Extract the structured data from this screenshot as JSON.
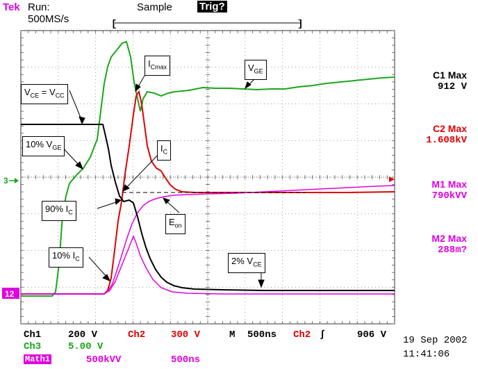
{
  "header": {
    "brand": "Tek",
    "run_status": "Run: 500MS/s",
    "acq_mode": "Sample",
    "trigger_status": "Trig?"
  },
  "colors": {
    "ch1": "#000000",
    "ch2": "#e00000",
    "ch3": "#1aa61a",
    "math": "#e000e0",
    "brand": "#e000e0",
    "grid": "#555555"
  },
  "callouts": {
    "vce_eq_vcc": "V",
    "vce_eq_vcc_sub": "CE",
    "vce_eq_vcc_mid": " = V",
    "vce_eq_vcc_sub2": "CC",
    "pct10_vge": "10% V",
    "pct10_vge_sub": "GE",
    "icmax": "I",
    "icmax_sub": "Cmax",
    "vge": "V",
    "vge_sub": "GE",
    "ic": "I",
    "ic_sub": "C",
    "pct90_ic": "90% I",
    "pct90_ic_sub": "C",
    "eon": "E",
    "eon_sub": "on",
    "pct10_ic": "10% I",
    "pct10_ic_sub": "C",
    "pct2_vce": "2% V",
    "pct2_vce_sub": "CE"
  },
  "measurements": [
    {
      "label": "C1 Max",
      "value": "912 V"
    },
    {
      "label": "C2 Max",
      "value": "1.608kV"
    },
    {
      "label": "M1 Max",
      "value": "790kVV"
    },
    {
      "label": "M2 Max",
      "value": "288m?"
    }
  ],
  "markers": {
    "ch3_ground": "3",
    "ch1_ground": "12"
  },
  "bottom": {
    "ch1_label": "Ch1",
    "ch1_scale": "200 V",
    "ch2_label": "Ch2",
    "ch2_scale": "300 V",
    "timebase_label": "M",
    "timebase": "500ns",
    "trig_source": "Ch2",
    "trig_slope": "∫",
    "trig_level": "906 V",
    "ch3_label": "Ch3",
    "ch3_scale": "5.00 V",
    "math_label": "Math1",
    "math_scale": "500kVV",
    "math_time": "500ns",
    "date": "19 Sep 2002",
    "time": "11:41:06"
  }
}
